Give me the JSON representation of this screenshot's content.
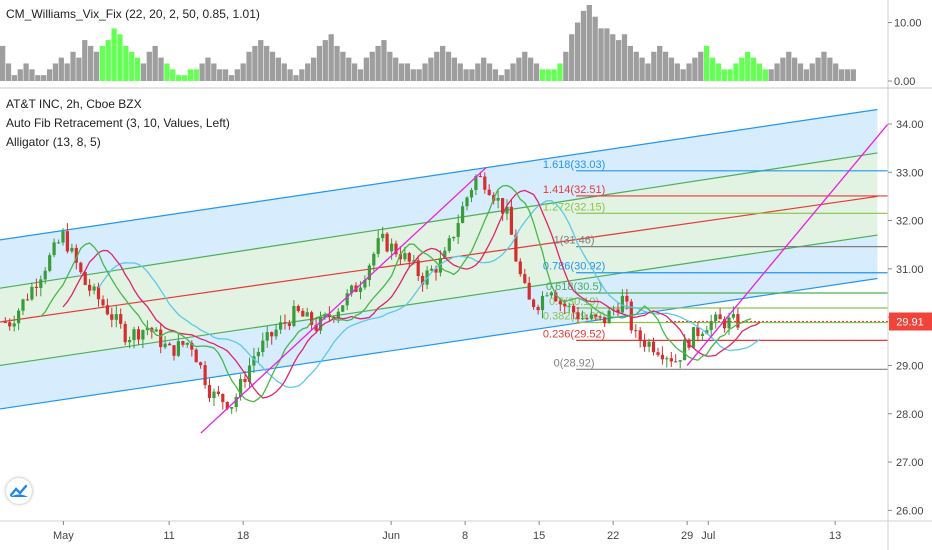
{
  "legend": {
    "vix_title": "CM_Williams_Vix_Fix (22, 20, 2, 50, 0.85, 1.01)",
    "symbol": "AT&T INC, 2h, Cboe BZX",
    "fib": "Auto Fib Retracement (3, 10, Values, Left)",
    "alligator": "Alligator (13, 8, 5)"
  },
  "colors": {
    "channel_outer": "#2196f3",
    "channel_inner": "#4caf50",
    "channel_mid": "#e53935",
    "trend": "#e91ee6",
    "vix_normal": "#9e9e9e",
    "vix_spike": "#66ff55",
    "price_badge": "#f0433a",
    "candle_up": "#3a9b3a",
    "candle_down": "#d32f2f"
  },
  "chart_data": [
    {
      "type": "bar",
      "name": "vix_fix",
      "yticks": [
        "10.00",
        "0.00"
      ],
      "ylim": [
        0,
        13
      ],
      "values": [
        6,
        3,
        1,
        2,
        3,
        2,
        1,
        1,
        2,
        3,
        4,
        3,
        5,
        4,
        7,
        6,
        5,
        6,
        7,
        9,
        8,
        6,
        5,
        4,
        3,
        5,
        6,
        4,
        3,
        2,
        1,
        1,
        2,
        2,
        3,
        4,
        3,
        2,
        2,
        1,
        2,
        3,
        5,
        6,
        7,
        6,
        5,
        4,
        3,
        2,
        1,
        2,
        3,
        4,
        6,
        7,
        8,
        6,
        5,
        4,
        3,
        2,
        4,
        5,
        6,
        7,
        5,
        4,
        3,
        3,
        2,
        2,
        3,
        4,
        5,
        6,
        5,
        4,
        3,
        2,
        2,
        3,
        4,
        3,
        2,
        1,
        2,
        3,
        4,
        5,
        4,
        3,
        2,
        2,
        2,
        3,
        5,
        8,
        10,
        12,
        13,
        11,
        9,
        9,
        8,
        7,
        8,
        6,
        5,
        4,
        3,
        5,
        6,
        5,
        4,
        3,
        2,
        3,
        4,
        5,
        6,
        4,
        3,
        2,
        2,
        3,
        4,
        5,
        4,
        3,
        2,
        2,
        3,
        4,
        5,
        4,
        3,
        2,
        3,
        4,
        5,
        4,
        3,
        2,
        2,
        2
      ],
      "spikes": [
        [
          17,
          23
        ],
        [
          28,
          33
        ],
        [
          92,
          95
        ],
        [
          120,
          130
        ]
      ]
    },
    {
      "type": "candlestick",
      "name": "price",
      "ylim": [
        25.8,
        34.6
      ],
      "yticks": [
        "34.00",
        "33.00",
        "32.00",
        "31.00",
        "30.00",
        "29.00",
        "28.00",
        "27.00",
        "26.00"
      ],
      "xticks": [
        {
          "label": "May",
          "day": 1
        },
        {
          "label": "11",
          "day": 11
        },
        {
          "label": "18",
          "day": 18
        },
        {
          "label": "Jun",
          "day": 32
        },
        {
          "label": "8",
          "day": 39
        },
        {
          "label": "15",
          "day": 46
        },
        {
          "label": "22",
          "day": 53
        },
        {
          "label": "29",
          "day": 60
        },
        {
          "label": "Jul",
          "day": 62
        },
        {
          "label": "13",
          "day": 74
        }
      ],
      "anchors": [
        [
          -4,
          29.9
        ],
        [
          -2,
          30.6
        ],
        [
          1,
          31.7
        ],
        [
          3,
          30.7
        ],
        [
          5,
          30.2
        ],
        [
          7,
          29.6
        ],
        [
          9,
          29.8
        ],
        [
          11,
          29.3
        ],
        [
          13,
          29.5
        ],
        [
          15,
          28.4
        ],
        [
          17,
          28.2
        ],
        [
          19,
          29.2
        ],
        [
          21,
          29.7
        ],
        [
          23,
          30.1
        ],
        [
          25,
          29.8
        ],
        [
          27,
          30.2
        ],
        [
          29,
          30.7
        ],
        [
          31,
          31.6
        ],
        [
          33,
          31.3
        ],
        [
          35,
          30.8
        ],
        [
          37,
          31.2
        ],
        [
          39,
          32.4
        ],
        [
          40,
          32.9
        ],
        [
          41,
          32.8
        ],
        [
          43,
          32.1
        ],
        [
          44,
          31.0
        ],
        [
          45,
          30.3
        ],
        [
          46,
          30.3
        ],
        [
          47,
          30.7
        ],
        [
          48,
          30.3
        ],
        [
          50,
          30.0
        ],
        [
          52,
          29.9
        ],
        [
          54,
          30.4
        ],
        [
          55,
          29.6
        ],
        [
          57,
          29.4
        ],
        [
          59,
          29.1
        ],
        [
          60,
          29.5
        ],
        [
          62,
          29.9
        ],
        [
          63,
          29.9
        ],
        [
          65,
          29.9
        ]
      ],
      "last_price": "29.91",
      "fib_levels": [
        {
          "ratio": "1.618",
          "value": "33.03",
          "level": 33.03,
          "color": "#2196f3"
        },
        {
          "ratio": "1.414",
          "value": "32.51",
          "level": 32.51,
          "color": "#e53935"
        },
        {
          "ratio": "1.272",
          "value": "32.15",
          "level": 32.15,
          "color": "#8bc34a"
        },
        {
          "ratio": "1",
          "value": "31.46",
          "level": 31.46,
          "color": "#808080"
        },
        {
          "ratio": "0.786",
          "value": "30.92",
          "level": 30.92,
          "color": "#2196f3"
        },
        {
          "ratio": "0.618",
          "value": "30.5",
          "level": 30.5,
          "color": "#4caf50"
        },
        {
          "ratio": "0.5",
          "value": "30.19",
          "level": 30.19,
          "color": "#8bc34a"
        },
        {
          "ratio": "0.382",
          "value": "29.89",
          "level": 29.89,
          "color": "#8bc34a"
        },
        {
          "ratio": "0.236",
          "value": "29.52",
          "level": 29.52,
          "color": "#e53935"
        },
        {
          "ratio": "0",
          "value": "28.92",
          "level": 28.92,
          "color": "#808080"
        }
      ],
      "channel": {
        "x": [
          -5,
          78
        ],
        "outer_top": [
          31.6,
          34.3
        ],
        "inner_top": [
          30.6,
          33.4
        ],
        "mid": [
          29.9,
          32.5
        ],
        "inner_bottom": [
          29.0,
          31.7
        ],
        "outer_bottom": [
          28.1,
          30.8
        ]
      },
      "trend_lines": [
        [
          [
            14,
            27.6
          ],
          [
            41,
            33.1
          ]
        ],
        [
          [
            60,
            29.0
          ],
          [
            79,
            34.0
          ]
        ]
      ]
    }
  ]
}
